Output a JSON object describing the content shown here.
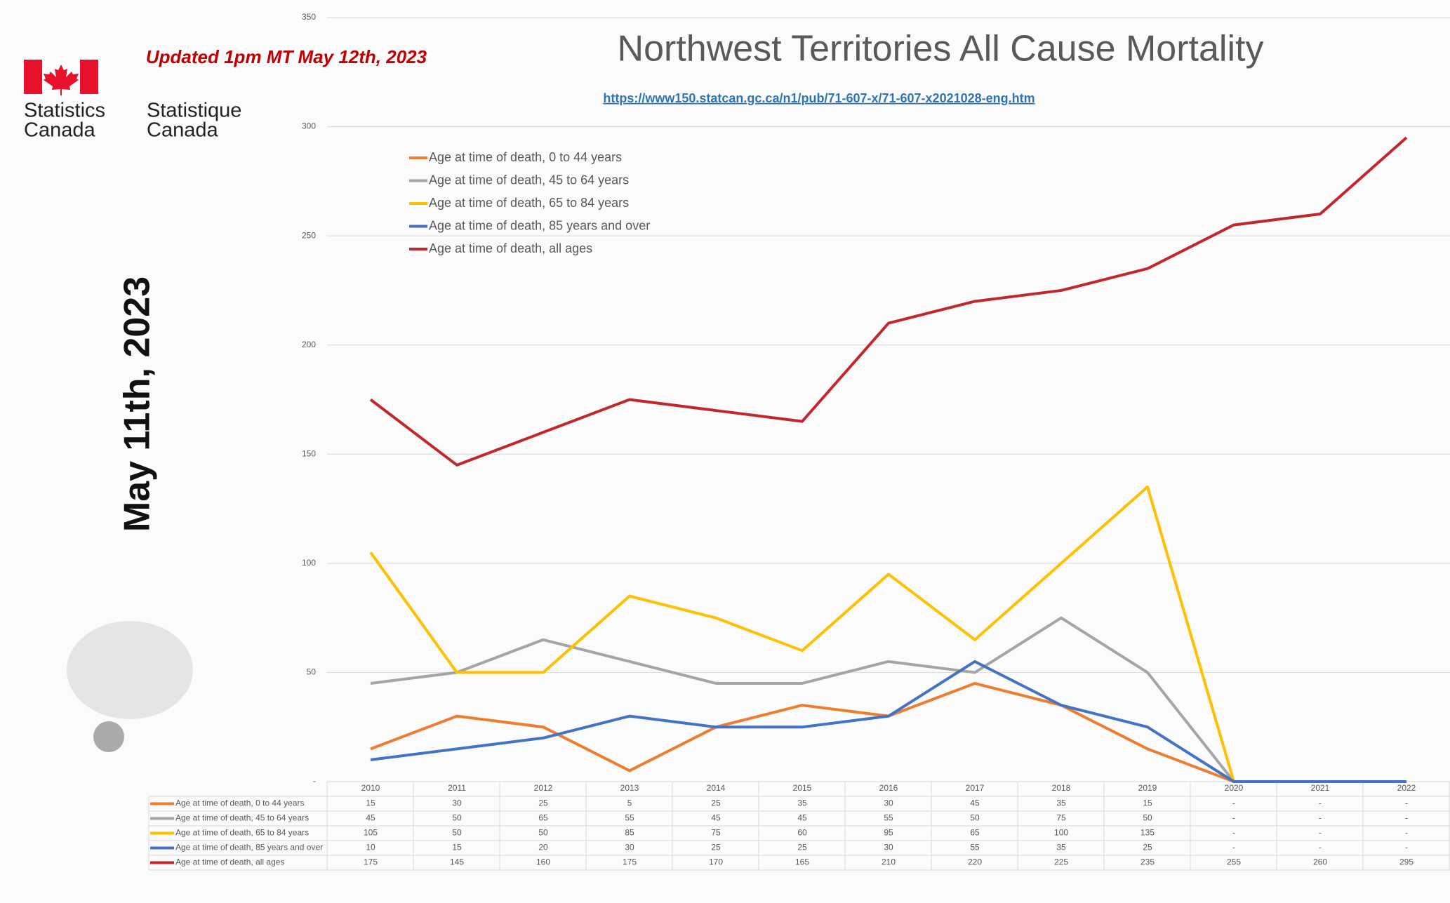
{
  "chart_data": {
    "type": "line",
    "title": "Northwest Territories All Cause Mortality",
    "subtitle": "https://www150.statcan.gc.ca/n1/pub/71-607-x/71-607-x2021028-eng.htm",
    "annotations": [
      "Updated 1pm MT May 12th, 2023",
      "May 11th, 2023"
    ],
    "logo": {
      "english": [
        "Statistics",
        "Canada"
      ],
      "french": [
        "Statistique",
        "Canada"
      ]
    },
    "categories": [
      "2010",
      "2011",
      "2012",
      "2013",
      "2014",
      "2015",
      "2016",
      "2017",
      "2018",
      "2019",
      "2020",
      "2021",
      "2022"
    ],
    "series": [
      {
        "name": "Age at time of death, 0 to 44 years",
        "color": "#ed7d31",
        "values": [
          15,
          30,
          25,
          5,
          25,
          35,
          30,
          45,
          35,
          15,
          0,
          0,
          0
        ],
        "value_labels": [
          "15",
          "30",
          "25",
          "5",
          "25",
          "35",
          "30",
          "45",
          "35",
          "15",
          "-",
          "-",
          "-"
        ]
      },
      {
        "name": "Age at time of death, 45 to 64 years",
        "color": "#a5a5a5",
        "values": [
          45,
          50,
          65,
          55,
          45,
          45,
          55,
          50,
          75,
          50,
          0,
          0,
          0
        ],
        "value_labels": [
          "45",
          "50",
          "65",
          "55",
          "45",
          "45",
          "55",
          "50",
          "75",
          "50",
          "-",
          "-",
          "-"
        ]
      },
      {
        "name": "Age at time of death, 65 to 84 years",
        "color": "#ffc000",
        "values": [
          105,
          50,
          50,
          85,
          75,
          60,
          95,
          65,
          100,
          135,
          0,
          0,
          0
        ],
        "value_labels": [
          "105",
          "50",
          "50",
          "85",
          "75",
          "60",
          "95",
          "65",
          "100",
          "135",
          "-",
          "-",
          "-"
        ]
      },
      {
        "name": "Age at time of death, 85 years and over",
        "color": "#4472c4",
        "values": [
          10,
          15,
          20,
          30,
          25,
          25,
          30,
          55,
          35,
          25,
          0,
          0,
          0
        ],
        "value_labels": [
          "10",
          "15",
          "20",
          "30",
          "25",
          "25",
          "30",
          "55",
          "35",
          "25",
          "-",
          "-",
          "-"
        ]
      },
      {
        "name": "Age at time of death, all ages",
        "color": "#c0282d",
        "values": [
          175,
          145,
          160,
          175,
          170,
          165,
          210,
          220,
          225,
          235,
          255,
          260,
          295
        ]
      }
    ],
    "ylim": [
      0,
      350
    ],
    "yticks": [
      {
        "value": 0,
        "label": "-"
      },
      50,
      100,
      150,
      200,
      250,
      300,
      350
    ],
    "grid": true,
    "legend": "upper left"
  }
}
